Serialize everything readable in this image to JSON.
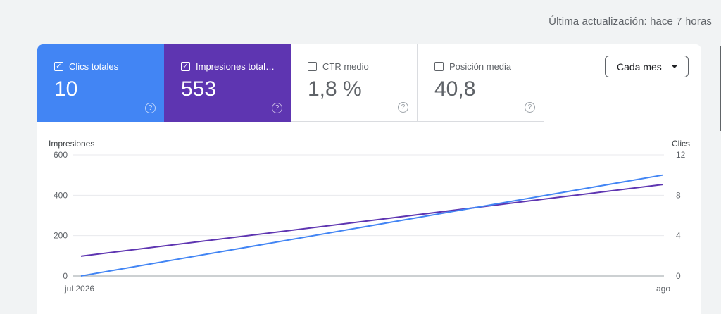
{
  "header": {
    "last_update": "Última actualización: hace 7 horas"
  },
  "metrics": [
    {
      "label": "Clics totales",
      "value": "10",
      "checked": true,
      "color": "#4285f4"
    },
    {
      "label": "Impresiones totales",
      "value": "553",
      "checked": true,
      "color": "#5e35b1"
    },
    {
      "label": "CTR medio",
      "value": "1,8 %",
      "checked": false
    },
    {
      "label": "Posición media",
      "value": "40,8",
      "checked": false
    }
  ],
  "period": {
    "label": "Cada mes"
  },
  "icons": {
    "help": "help-circle-icon",
    "check": "checkbox-check-icon",
    "caret": "caret-down-icon"
  },
  "chart_data": {
    "type": "line",
    "x": [
      "jul 2026",
      "ago"
    ],
    "series": [
      {
        "name": "Impresiones",
        "axis": "left",
        "values": [
          98,
          453
        ],
        "color": "#5e35b1"
      },
      {
        "name": "Clics",
        "axis": "right",
        "values": [
          0,
          10
        ],
        "color": "#4285f4"
      }
    ],
    "ylabel_left": "Impresiones",
    "ylabel_right": "Clics",
    "ylim_left": [
      0,
      600
    ],
    "ylim_right": [
      0,
      12
    ],
    "yticks_left": [
      "0",
      "200",
      "400",
      "600"
    ],
    "yticks_right": [
      "0",
      "4",
      "8",
      "12"
    ],
    "grid": true
  }
}
